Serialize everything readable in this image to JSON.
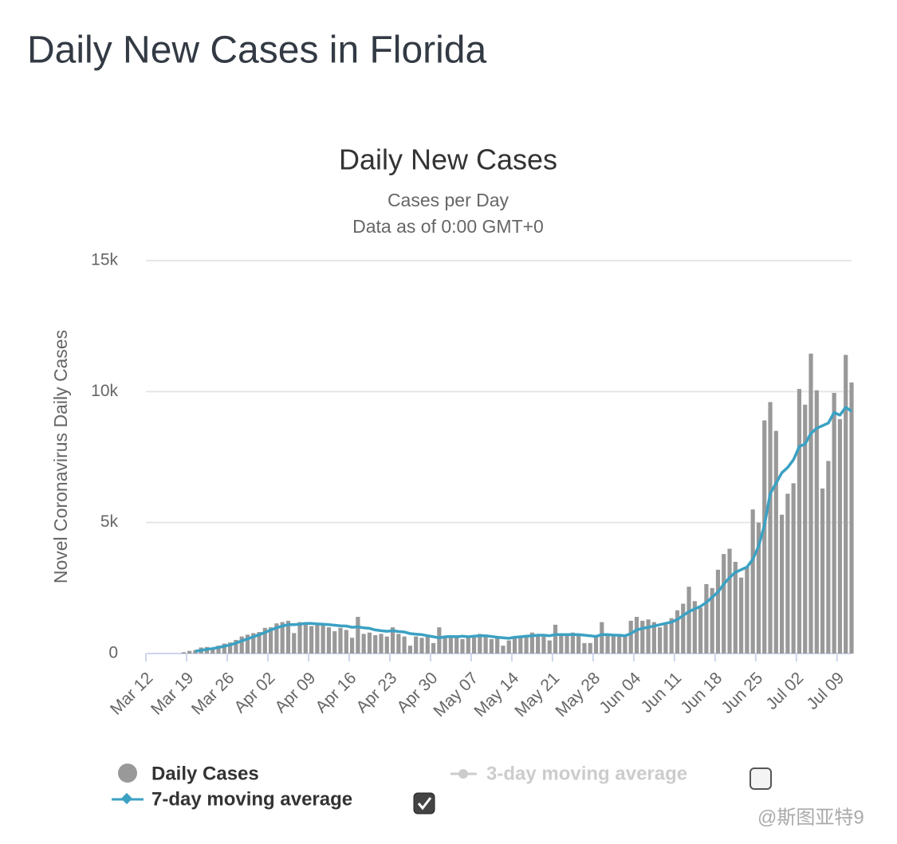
{
  "page_title": "Daily New Cases in Florida",
  "chart_data": {
    "type": "bar",
    "title": "Daily New Cases",
    "subtitle": [
      "Cases per Day",
      "Data as of 0:00 GMT+0"
    ],
    "y_label": "Novel Coronavirus Daily Cases",
    "categories": [
      "Mar 12",
      null,
      null,
      null,
      null,
      null,
      null,
      "Mar 19",
      null,
      null,
      null,
      null,
      null,
      null,
      "Mar 26",
      null,
      null,
      null,
      null,
      null,
      null,
      "Apr 02",
      null,
      null,
      null,
      null,
      null,
      null,
      "Apr 09",
      null,
      null,
      null,
      null,
      null,
      null,
      "Apr 16",
      null,
      null,
      null,
      null,
      null,
      null,
      "Apr 23",
      null,
      null,
      null,
      null,
      null,
      null,
      "Apr 30",
      null,
      null,
      null,
      null,
      null,
      null,
      "May 07",
      null,
      null,
      null,
      null,
      null,
      null,
      "May 14",
      null,
      null,
      null,
      null,
      null,
      null,
      "May 21",
      null,
      null,
      null,
      null,
      null,
      null,
      "May 28",
      null,
      null,
      null,
      null,
      null,
      null,
      "Jun 04",
      null,
      null,
      null,
      null,
      null,
      null,
      "Jun 11",
      null,
      null,
      null,
      null,
      null,
      null,
      "Jun 18",
      null,
      null,
      null,
      null,
      null,
      null,
      "Jun 25",
      null,
      null,
      null,
      null,
      null,
      null,
      "Jul 02",
      null,
      null,
      null,
      null,
      null,
      null,
      "Jul 09",
      null,
      null
    ],
    "series": [
      {
        "name": "Daily Cases",
        "color": "#999999",
        "type": "bar",
        "values": [
          0,
          0,
          0,
          0,
          0,
          0,
          50,
          100,
          130,
          230,
          250,
          190,
          300,
          380,
          420,
          520,
          650,
          720,
          780,
          820,
          980,
          1000,
          1150,
          1200,
          1250,
          780,
          1200,
          1100,
          1050,
          1100,
          1150,
          1000,
          850,
          980,
          900,
          600,
          1400,
          750,
          800,
          700,
          750,
          650,
          1000,
          750,
          650,
          300,
          650,
          600,
          700,
          400,
          1000,
          600,
          650,
          700,
          550,
          600,
          650,
          750,
          650,
          550,
          600,
          300,
          500,
          650,
          600,
          700,
          800,
          700,
          650,
          500,
          1100,
          750,
          700,
          800,
          750,
          400,
          400,
          650,
          1200,
          750,
          750,
          700,
          650,
          1250,
          1400,
          1250,
          1300,
          1200,
          1000,
          1100,
          1350,
          1650,
          1900,
          2550,
          2000,
          1750,
          2650,
          2500,
          3200,
          3800,
          4000,
          3500,
          2900,
          3300,
          5500,
          5000,
          8900,
          9600,
          8500,
          5300,
          6100,
          6500,
          10100,
          9500,
          11450,
          10050,
          6300,
          7350,
          9950,
          8950,
          11400,
          10350
        ]
      },
      {
        "name": "7-day moving average",
        "color": "#3ba1c3",
        "type": "line",
        "values": [
          null,
          null,
          null,
          null,
          null,
          null,
          null,
          null,
          90,
          120,
          160,
          190,
          230,
          280,
          330,
          400,
          480,
          560,
          640,
          720,
          800,
          900,
          980,
          1050,
          1100,
          1100,
          1120,
          1150,
          1150,
          1130,
          1120,
          1100,
          1080,
          1060,
          1050,
          1000,
          1020,
          980,
          960,
          900,
          870,
          850,
          870,
          840,
          820,
          760,
          740,
          720,
          680,
          640,
          600,
          640,
          650,
          640,
          660,
          640,
          660,
          680,
          680,
          650,
          620,
          600,
          580,
          620,
          640,
          660,
          680,
          700,
          700,
          680,
          720,
          720,
          720,
          720,
          720,
          700,
          680,
          650,
          720,
          720,
          700,
          700,
          680,
          760,
          900,
          960,
          1000,
          1050,
          1100,
          1150,
          1200,
          1300,
          1450,
          1600,
          1700,
          1800,
          1950,
          2150,
          2350,
          2650,
          2900,
          3100,
          3200,
          3300,
          3600,
          4100,
          4900,
          6100,
          6500,
          6900,
          7100,
          7400,
          7900,
          8000,
          8400,
          8600,
          8700,
          8800,
          9200,
          9100,
          9400,
          9250
        ]
      }
    ],
    "inactive_legend": [
      "3-day moving average"
    ],
    "ylim": [
      0,
      15000
    ],
    "yticks": [
      0,
      {
        "value": 5000,
        "label": "5k"
      },
      {
        "value": 10000,
        "label": "10k"
      },
      {
        "value": 15000,
        "label": "15k"
      }
    ],
    "grid": true
  },
  "watermark": "@斯图亚特9"
}
